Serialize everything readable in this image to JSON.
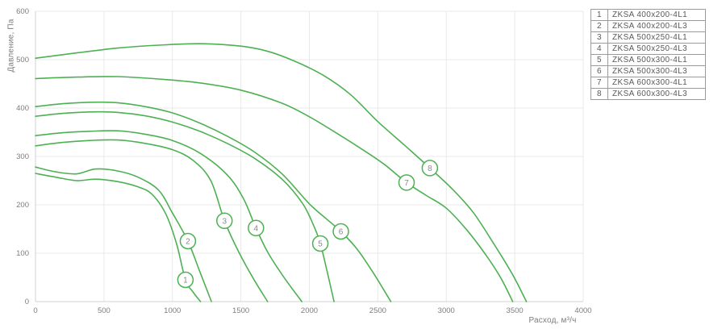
{
  "colors": {
    "curve": "#4db153",
    "grid": "#e9e9e9",
    "axis": "#d2d2d2",
    "tick_text": "#7d7d7d",
    "legend_border": "#9b9b9b",
    "legend_text": "#58595b",
    "marker_text": "#8a8a8a",
    "background": "#ffffff"
  },
  "chart_data": {
    "type": "line",
    "title": "",
    "xlabel": "Расход, м³/ч",
    "ylabel": "Давление, Па",
    "xlim": [
      0,
      4000
    ],
    "ylim": [
      0,
      600
    ],
    "x_ticks": [
      0,
      500,
      1000,
      1500,
      2000,
      2500,
      3000,
      3500,
      4000
    ],
    "y_ticks": [
      0,
      100,
      200,
      300,
      400,
      500,
      600
    ],
    "grid": true,
    "legend_position": "top-right",
    "series": [
      {
        "num": "1",
        "name": "ZKSA 400x200-4L1",
        "marker_at": [
          1095,
          45
        ],
        "points": [
          [
            0,
            265
          ],
          [
            150,
            257
          ],
          [
            300,
            250
          ],
          [
            440,
            253
          ],
          [
            600,
            248
          ],
          [
            750,
            237
          ],
          [
            850,
            222
          ],
          [
            950,
            182
          ],
          [
            1030,
            120
          ],
          [
            1095,
            45
          ],
          [
            1150,
            20
          ],
          [
            1205,
            0
          ]
        ]
      },
      {
        "num": "2",
        "name": "ZKSA 400x200-4L3",
        "marker_at": [
          1113,
          125
        ],
        "points": [
          [
            0,
            278
          ],
          [
            150,
            268
          ],
          [
            300,
            264
          ],
          [
            440,
            274
          ],
          [
            600,
            270
          ],
          [
            750,
            257
          ],
          [
            900,
            230
          ],
          [
            1000,
            183
          ],
          [
            1113,
            125
          ],
          [
            1200,
            62
          ],
          [
            1285,
            0
          ]
        ]
      },
      {
        "num": "3",
        "name": "ZKSA 500x250-4L1",
        "marker_at": [
          1380,
          167
        ],
        "points": [
          [
            0,
            322
          ],
          [
            200,
            329
          ],
          [
            400,
            333
          ],
          [
            600,
            334
          ],
          [
            800,
            327
          ],
          [
            1000,
            314
          ],
          [
            1150,
            292
          ],
          [
            1280,
            250
          ],
          [
            1380,
            167
          ],
          [
            1480,
            105
          ],
          [
            1590,
            48
          ],
          [
            1695,
            0
          ]
        ]
      },
      {
        "num": "4",
        "name": "ZKSA 500x250-4L3",
        "marker_at": [
          1610,
          152
        ],
        "points": [
          [
            0,
            343
          ],
          [
            200,
            349
          ],
          [
            400,
            352
          ],
          [
            600,
            353
          ],
          [
            800,
            346
          ],
          [
            1000,
            333
          ],
          [
            1200,
            307
          ],
          [
            1400,
            262
          ],
          [
            1520,
            212
          ],
          [
            1610,
            152
          ],
          [
            1700,
            100
          ],
          [
            1820,
            48
          ],
          [
            1945,
            0
          ]
        ]
      },
      {
        "num": "5",
        "name": "ZKSA 500x300-4L1",
        "marker_at": [
          2080,
          120
        ],
        "points": [
          [
            0,
            383
          ],
          [
            200,
            389
          ],
          [
            400,
            392
          ],
          [
            600,
            391
          ],
          [
            800,
            384
          ],
          [
            1000,
            371
          ],
          [
            1200,
            352
          ],
          [
            1400,
            327
          ],
          [
            1600,
            296
          ],
          [
            1800,
            253
          ],
          [
            1950,
            203
          ],
          [
            2030,
            158
          ],
          [
            2080,
            120
          ],
          [
            2130,
            62
          ],
          [
            2180,
            0
          ]
        ]
      },
      {
        "num": "6",
        "name": "ZKSA 500x300-4L3",
        "marker_at": [
          2230,
          145
        ],
        "points": [
          [
            0,
            403
          ],
          [
            200,
            409
          ],
          [
            400,
            412
          ],
          [
            600,
            411
          ],
          [
            800,
            403
          ],
          [
            1000,
            390
          ],
          [
            1200,
            369
          ],
          [
            1400,
            342
          ],
          [
            1600,
            309
          ],
          [
            1800,
            264
          ],
          [
            2000,
            202
          ],
          [
            2120,
            172
          ],
          [
            2230,
            145
          ],
          [
            2350,
            108
          ],
          [
            2470,
            58
          ],
          [
            2595,
            0
          ]
        ]
      },
      {
        "num": "7",
        "name": "ZKSA 600x300-4L1",
        "marker_at": [
          2710,
          246
        ],
        "points": [
          [
            0,
            461
          ],
          [
            300,
            464
          ],
          [
            600,
            465
          ],
          [
            900,
            460
          ],
          [
            1200,
            452
          ],
          [
            1500,
            437
          ],
          [
            1800,
            410
          ],
          [
            2000,
            382
          ],
          [
            2200,
            348
          ],
          [
            2400,
            312
          ],
          [
            2550,
            283
          ],
          [
            2710,
            246
          ],
          [
            2850,
            220
          ],
          [
            3000,
            193
          ],
          [
            3150,
            148
          ],
          [
            3300,
            92
          ],
          [
            3400,
            48
          ],
          [
            3485,
            0
          ]
        ]
      },
      {
        "num": "8",
        "name": "ZKSA 600x300-4L3",
        "marker_at": [
          2880,
          276
        ],
        "points": [
          [
            0,
            503
          ],
          [
            300,
            514
          ],
          [
            600,
            524
          ],
          [
            900,
            530
          ],
          [
            1200,
            533
          ],
          [
            1500,
            528
          ],
          [
            1700,
            517
          ],
          [
            1900,
            496
          ],
          [
            2100,
            468
          ],
          [
            2300,
            428
          ],
          [
            2500,
            372
          ],
          [
            2700,
            322
          ],
          [
            2880,
            276
          ],
          [
            3050,
            231
          ],
          [
            3200,
            183
          ],
          [
            3350,
            118
          ],
          [
            3480,
            58
          ],
          [
            3585,
            0
          ]
        ]
      }
    ]
  }
}
